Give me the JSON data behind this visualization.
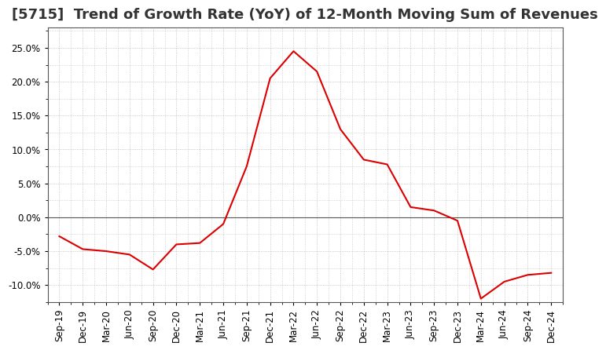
{
  "title": "[5715]  Trend of Growth Rate (YoY) of 12-Month Moving Sum of Revenues",
  "line_color": "#DD0000",
  "background_color": "#FFFFFF",
  "plot_bg_color": "#FFFFFF",
  "grid_color": "#AAAAAA",
  "title_color": "#333333",
  "ylim": [
    -0.125,
    0.28
  ],
  "yticks": [
    -0.1,
    -0.05,
    0.0,
    0.05,
    0.1,
    0.15,
    0.2,
    0.25
  ],
  "dates": [
    "Sep-19",
    "Dec-19",
    "Mar-20",
    "Jun-20",
    "Sep-20",
    "Dec-20",
    "Mar-21",
    "Jun-21",
    "Sep-21",
    "Dec-21",
    "Mar-22",
    "Jun-22",
    "Sep-22",
    "Dec-22",
    "Mar-23",
    "Jun-23",
    "Sep-23",
    "Dec-23",
    "Mar-24",
    "Jun-24",
    "Sep-24",
    "Dec-24"
  ],
  "values": [
    -0.028,
    -0.047,
    -0.05,
    -0.055,
    -0.077,
    -0.04,
    -0.038,
    -0.01,
    0.075,
    0.205,
    0.245,
    0.215,
    0.13,
    0.085,
    0.078,
    0.015,
    0.01,
    -0.005,
    -0.12,
    -0.095,
    -0.085,
    -0.082
  ],
  "title_fontsize": 13,
  "tick_fontsize": 8.5,
  "zero_line_color": "#555555",
  "spine_color": "#555555"
}
